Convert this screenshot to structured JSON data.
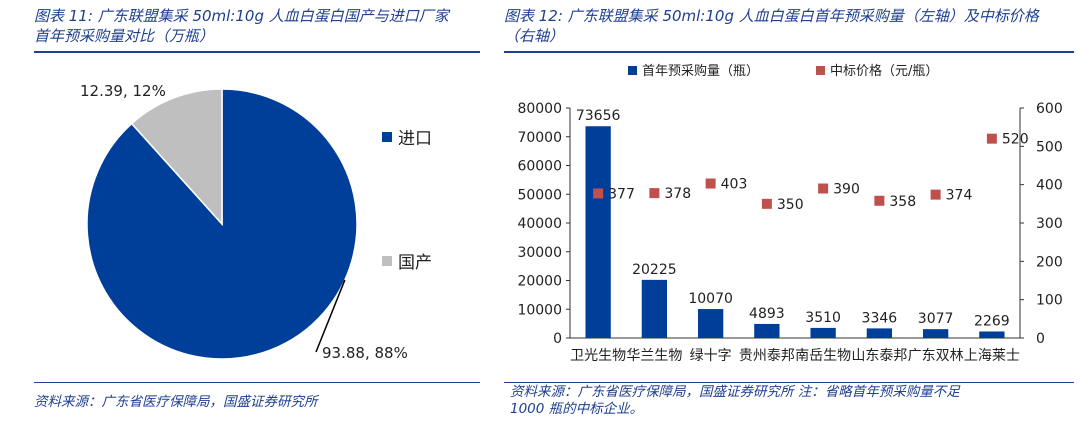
{
  "left": {
    "caption_line1": "图表 11: 广东联盟集采 50ml:10g 人血白蛋白国产与进口厂家",
    "caption_line2": "首年预采购量对比（万瓶）",
    "source": "资料来源：广东省医疗保障局，国盛证券研究所",
    "chart_data": {
      "type": "pie",
      "slices": [
        {
          "name": "进口",
          "value": 93.88,
          "percent": "88%",
          "label": "93.88, 88%",
          "color": "#003f99"
        },
        {
          "name": "国产",
          "value": 12.39,
          "percent": "12%",
          "label": "12.39, 12%",
          "color": "#bfbfbf"
        }
      ],
      "legend_position": "right"
    }
  },
  "right": {
    "caption_line1": "图表 12: 广东联盟集采 50ml:10g 人血白蛋白首年预采购量（左轴）及中标价格",
    "caption_line2": "（右轴）",
    "source_line1": "资料来源：广东省医疗保障局，国盛证券研究所 注：省略首年预采购量不足",
    "source_line2": "1000 瓶的中标企业。",
    "chart_data": {
      "type": "bar",
      "categories": [
        "卫光生物",
        "华兰生物",
        "绿十字",
        "贵州泰邦",
        "南岳生物",
        "山东泰邦",
        "广东双林",
        "上海莱士"
      ],
      "series": [
        {
          "name": "首年预采购量（瓶）",
          "type": "bar",
          "axis": "left",
          "color": "#003f99",
          "values": [
            73656,
            20225,
            10070,
            4893,
            3510,
            3346,
            3077,
            2269
          ]
        },
        {
          "name": "中标价格（元/瓶）",
          "type": "scatter",
          "axis": "right",
          "color": "#c0504d",
          "values": [
            377,
            378,
            403,
            350,
            390,
            358,
            374,
            520
          ]
        }
      ],
      "y_left": {
        "min": 0,
        "max": 80000,
        "ticks": [
          "0",
          "10000",
          "20000",
          "30000",
          "40000",
          "50000",
          "60000",
          "70000",
          "80000"
        ]
      },
      "y_right": {
        "min": 0,
        "max": 600,
        "ticks": [
          "0",
          "100",
          "200",
          "300",
          "400",
          "500",
          "600"
        ]
      },
      "legend_position": "top",
      "grid": false
    }
  }
}
